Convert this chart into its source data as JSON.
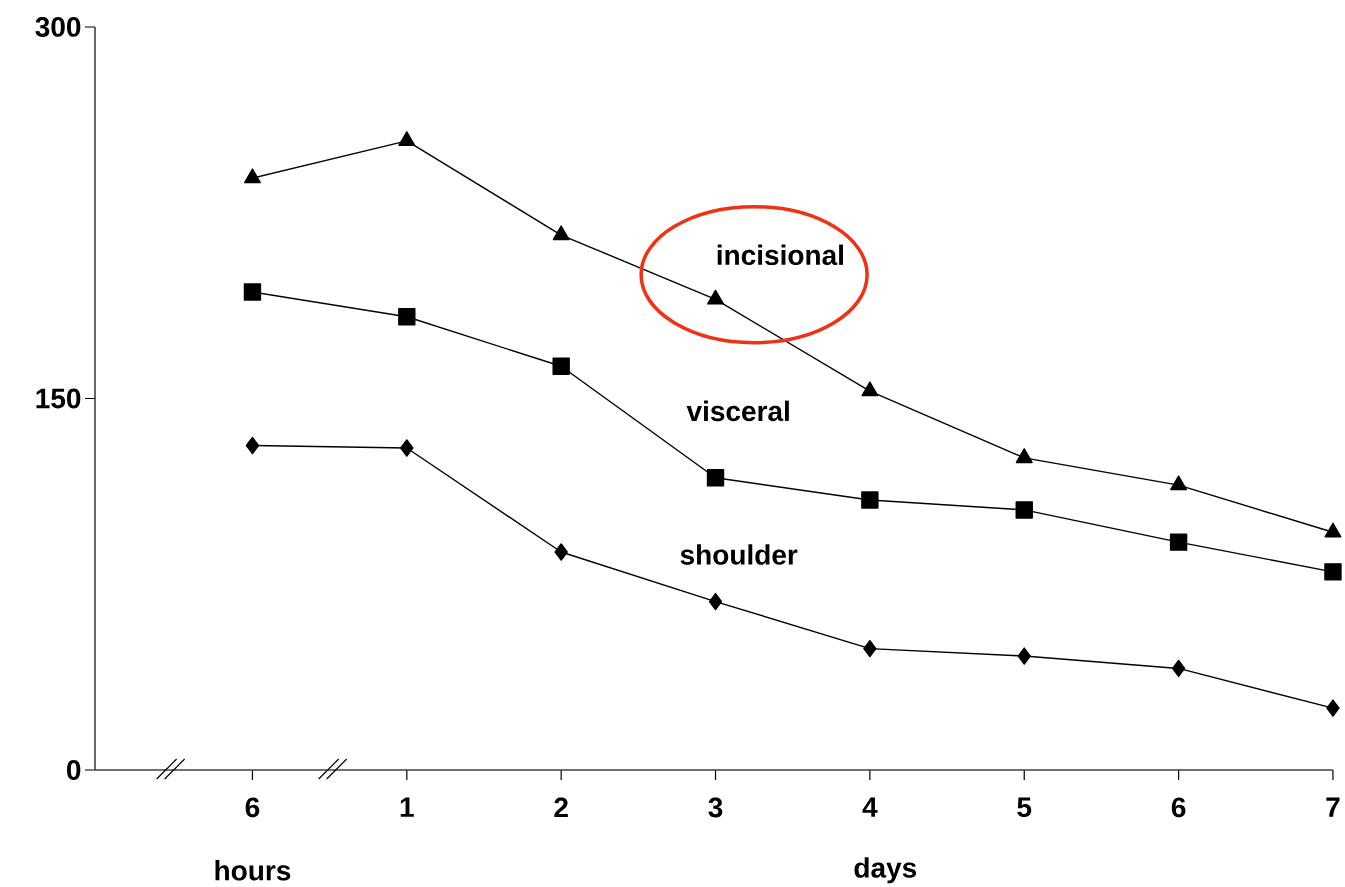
{
  "chart_data": {
    "type": "line",
    "categories": [
      "6",
      "1",
      "2",
      "3",
      "4",
      "5",
      "6",
      "7"
    ],
    "ylim": [
      0,
      300
    ],
    "yticks": [
      0,
      150,
      300
    ],
    "annotations": [
      "hours",
      "days"
    ],
    "line_style": "solid",
    "series": [
      {
        "name": "incisional",
        "color": "#000000",
        "marker": "triangle",
        "values": [
          239,
          254,
          216,
          190,
          153,
          126,
          115,
          96
        ]
      },
      {
        "name": "visceral",
        "color": "#000000",
        "marker": "square",
        "values": [
          193,
          183,
          163,
          118,
          109,
          105,
          92,
          80
        ]
      },
      {
        "name": "shoulder",
        "color": "#000000",
        "marker": "diamond",
        "values": [
          131,
          130,
          88,
          68,
          49,
          46,
          41,
          25
        ]
      }
    ]
  }
}
